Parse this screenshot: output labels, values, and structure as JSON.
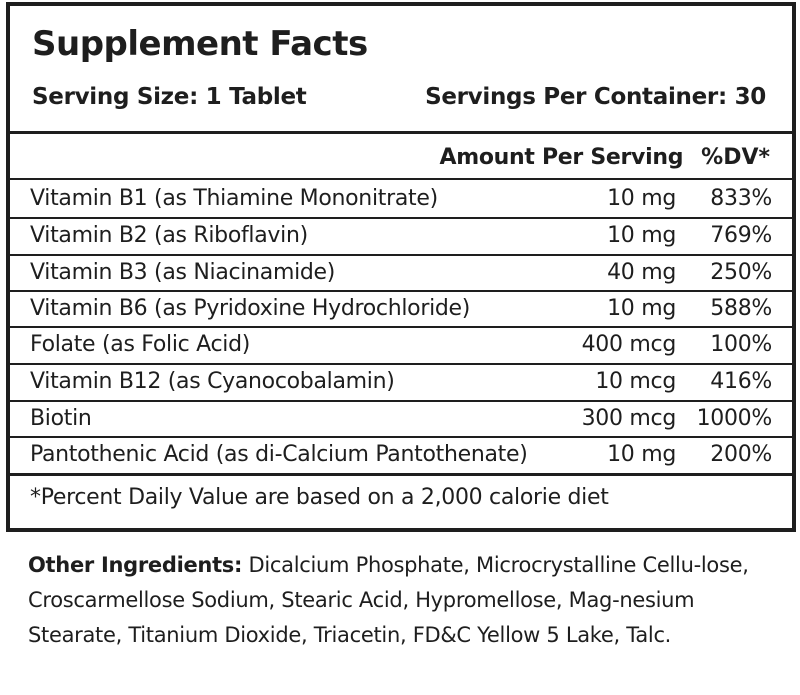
{
  "panel": {
    "title": "Supplement Facts",
    "serving_size": "Serving Size: 1 Tablet",
    "servings_per_container": "Servings Per Container: 30",
    "header": {
      "amount": "Amount Per Serving",
      "dv": "%DV*"
    },
    "rows": [
      {
        "name": "Vitamin B1 (as Thiamine Mononitrate)",
        "amount": "10 mg",
        "dv": "833%"
      },
      {
        "name": "Vitamin B2 (as Riboflavin)",
        "amount": "10 mg",
        "dv": "769%"
      },
      {
        "name": "Vitamin B3 (as Niacinamide)",
        "amount": "40 mg",
        "dv": "250%"
      },
      {
        "name": "Vitamin B6 (as Pyridoxine Hydrochloride)",
        "amount": "10 mg",
        "dv": "588%"
      },
      {
        "name": "Folate (as Folic Acid)",
        "amount": "400 mcg",
        "dv": "100%"
      },
      {
        "name": "Vitamin B12 (as Cyanocobalamin)",
        "amount": "10 mcg",
        "dv": "416%"
      },
      {
        "name": "Biotin",
        "amount": "300 mcg",
        "dv": "1000%"
      },
      {
        "name": "Pantothenic Acid (as di-Calcium Pantothenate)",
        "amount": "10 mg",
        "dv": "200%"
      }
    ],
    "footnote": "*Percent Daily Value are based on a 2,000 calorie diet"
  },
  "other_ingredients": {
    "label": "Other Ingredients:",
    "text": "Dicalcium Phosphate, Microcrystalline Cellu-lose, Croscarmellose Sodium, Stearic Acid, Hypromellose, Mag-nesium Stearate, Titanium Dioxide, Triacetin, FD&C Yellow 5 Lake, Talc."
  }
}
